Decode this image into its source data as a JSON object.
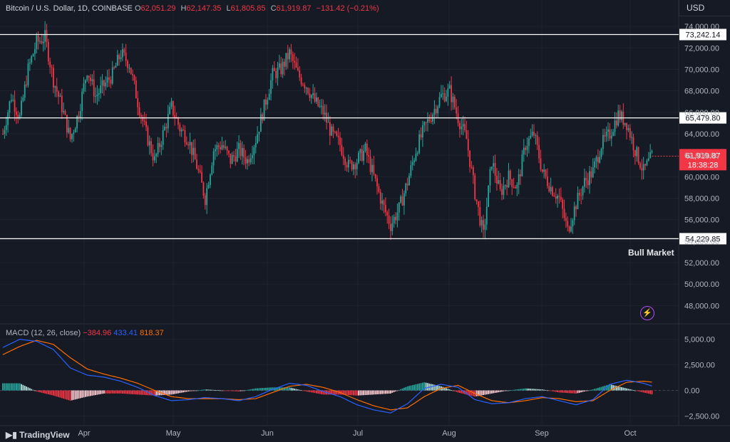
{
  "header": {
    "symbol": "Bitcoin / U.S. Dollar, 1D, COINBASE",
    "o_label": "O",
    "o": "62,051.29",
    "h_label": "H",
    "h": "62,147.35",
    "l_label": "L",
    "l": "61,805.85",
    "c_label": "C",
    "c": "61,919.87",
    "change": "−131.42 (−0.21%)"
  },
  "currency": "USD",
  "annotation": "Bull Market",
  "branding": "TradingView",
  "colors": {
    "up": "#26a69a",
    "down": "#f23645",
    "macd": "#2962ff",
    "signal": "#ff6d00",
    "background": "#161a25",
    "label_dark": "#ffffff"
  },
  "macd_header": {
    "label": "MACD (12, 26, close)",
    "hist": "−384.96",
    "macd": "433.41",
    "signal": "818.37"
  },
  "chart_data": [
    {
      "type": "candlestick",
      "y_ticks": [
        "74,000.00",
        "72,000.00",
        "70,000.00",
        "68,000.00",
        "66,000.00",
        "64,000.00",
        "62,000.00",
        "60,000.00",
        "58,000.00",
        "56,000.00",
        "54,000.00",
        "52,000.00",
        "50,000.00",
        "48,000.00"
      ],
      "ylim": [
        46500,
        75000
      ],
      "x_ticks": [
        "Apr",
        "May",
        "Jun",
        "Jul",
        "Aug",
        "Sep",
        "Oct"
      ],
      "levels": [
        {
          "value": 73242.14,
          "label": "73,242.14"
        },
        {
          "value": 65479.8,
          "label": "65,479.80"
        },
        {
          "value": 54229.85,
          "label": "54,229.85"
        }
      ],
      "last_price": {
        "value": 61919.87,
        "label": "61,919.87",
        "countdown": "18:38:28"
      },
      "close_path": [
        [
          0,
          64000
        ],
        [
          5,
          67500
        ],
        [
          10,
          65500
        ],
        [
          15,
          70000
        ],
        [
          20,
          72500
        ],
        [
          25,
          73000
        ],
        [
          30,
          69000
        ],
        [
          35,
          66500
        ],
        [
          40,
          63500
        ],
        [
          45,
          66000
        ],
        [
          50,
          70000
        ],
        [
          55,
          67500
        ],
        [
          60,
          68500
        ],
        [
          65,
          69500
        ],
        [
          70,
          71500
        ],
        [
          75,
          70500
        ],
        [
          80,
          67000
        ],
        [
          85,
          64000
        ],
        [
          90,
          61500
        ],
        [
          95,
          64000
        ],
        [
          100,
          66500
        ],
        [
          105,
          64500
        ],
        [
          110,
          63500
        ],
        [
          115,
          61000
        ],
        [
          120,
          58000
        ],
        [
          125,
          62500
        ],
        [
          130,
          63000
        ],
        [
          135,
          61500
        ],
        [
          140,
          62500
        ],
        [
          145,
          61500
        ],
        [
          150,
          63500
        ],
        [
          155,
          66500
        ],
        [
          160,
          69500
        ],
        [
          165,
          70000
        ],
        [
          170,
          71500
        ],
        [
          175,
          69500
        ],
        [
          180,
          68500
        ],
        [
          185,
          67000
        ],
        [
          190,
          66000
        ],
        [
          195,
          64000
        ],
        [
          200,
          63000
        ],
        [
          205,
          61000
        ],
        [
          210,
          61500
        ],
        [
          215,
          62500
        ],
        [
          220,
          60000
        ],
        [
          225,
          57500
        ],
        [
          230,
          55500
        ],
        [
          235,
          57000
        ],
        [
          240,
          59500
        ],
        [
          245,
          62500
        ],
        [
          250,
          64500
        ],
        [
          255,
          66000
        ],
        [
          260,
          67500
        ],
        [
          265,
          68000
        ],
        [
          270,
          65500
        ],
        [
          275,
          63500
        ],
        [
          280,
          58500
        ],
        [
          285,
          54500
        ],
        [
          290,
          61500
        ],
        [
          295,
          58500
        ],
        [
          300,
          60000
        ],
        [
          305,
          59000
        ],
        [
          310,
          63000
        ],
        [
          315,
          64000
        ],
        [
          320,
          60500
        ],
        [
          325,
          59000
        ],
        [
          330,
          58000
        ],
        [
          335,
          55000
        ],
        [
          340,
          57500
        ],
        [
          345,
          59500
        ],
        [
          350,
          60500
        ],
        [
          355,
          63000
        ],
        [
          360,
          64000
        ],
        [
          365,
          65800
        ],
        [
          370,
          65000
        ],
        [
          375,
          62500
        ],
        [
          380,
          60500
        ],
        [
          385,
          61900
        ]
      ]
    },
    {
      "type": "macd",
      "y_ticks": [
        "5,000.00",
        "2,500.00",
        "0.00",
        "−2,500.00"
      ],
      "ylim": [
        -3300,
        6300
      ],
      "macd_path": [
        [
          0,
          4200
        ],
        [
          10,
          5000
        ],
        [
          20,
          4800
        ],
        [
          30,
          4000
        ],
        [
          40,
          2200
        ],
        [
          50,
          1500
        ],
        [
          60,
          1300
        ],
        [
          70,
          900
        ],
        [
          80,
          300
        ],
        [
          90,
          -500
        ],
        [
          100,
          -1000
        ],
        [
          110,
          -900
        ],
        [
          120,
          -700
        ],
        [
          130,
          -800
        ],
        [
          140,
          -1000
        ],
        [
          150,
          -600
        ],
        [
          160,
          100
        ],
        [
          170,
          700
        ],
        [
          180,
          500
        ],
        [
          190,
          -100
        ],
        [
          200,
          -600
        ],
        [
          210,
          -1400
        ],
        [
          220,
          -1900
        ],
        [
          230,
          -2200
        ],
        [
          240,
          -1300
        ],
        [
          250,
          200
        ],
        [
          260,
          600
        ],
        [
          270,
          300
        ],
        [
          280,
          -900
        ],
        [
          290,
          -1300
        ],
        [
          300,
          -1200
        ],
        [
          310,
          -800
        ],
        [
          320,
          -600
        ],
        [
          330,
          -1000
        ],
        [
          340,
          -1400
        ],
        [
          350,
          -900
        ],
        [
          360,
          600
        ],
        [
          370,
          1000
        ],
        [
          380,
          700
        ],
        [
          385,
          433
        ]
      ],
      "signal_path": [
        [
          0,
          3500
        ],
        [
          10,
          4300
        ],
        [
          20,
          4900
        ],
        [
          30,
          4500
        ],
        [
          40,
          3200
        ],
        [
          50,
          2100
        ],
        [
          60,
          1600
        ],
        [
          70,
          1200
        ],
        [
          80,
          700
        ],
        [
          90,
          0
        ],
        [
          100,
          -600
        ],
        [
          110,
          -800
        ],
        [
          120,
          -800
        ],
        [
          130,
          -800
        ],
        [
          140,
          -900
        ],
        [
          150,
          -800
        ],
        [
          160,
          -200
        ],
        [
          170,
          400
        ],
        [
          180,
          600
        ],
        [
          190,
          300
        ],
        [
          200,
          -200
        ],
        [
          210,
          -900
        ],
        [
          220,
          -1500
        ],
        [
          230,
          -1900
        ],
        [
          240,
          -1700
        ],
        [
          250,
          -600
        ],
        [
          260,
          200
        ],
        [
          270,
          500
        ],
        [
          280,
          -300
        ],
        [
          290,
          -1000
        ],
        [
          300,
          -1200
        ],
        [
          310,
          -1000
        ],
        [
          320,
          -700
        ],
        [
          330,
          -800
        ],
        [
          340,
          -1100
        ],
        [
          350,
          -1000
        ],
        [
          360,
          0
        ],
        [
          370,
          800
        ],
        [
          380,
          900
        ],
        [
          385,
          818
        ]
      ]
    }
  ]
}
